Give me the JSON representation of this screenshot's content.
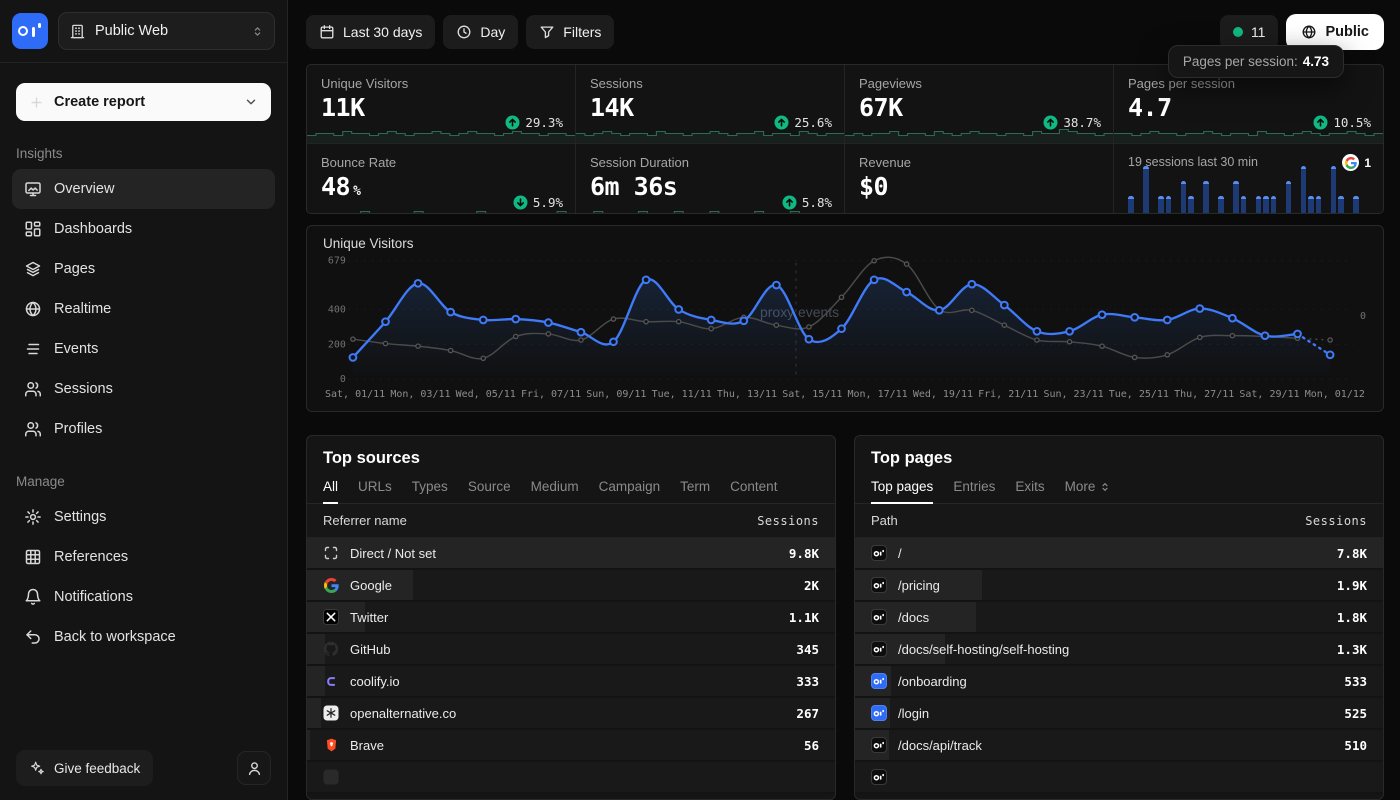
{
  "app": {
    "workspace": "Public Web"
  },
  "sidebar": {
    "create_report": "Create report",
    "sections": [
      {
        "label": "Insights",
        "items": [
          {
            "icon": "overview",
            "label": "Overview",
            "active": true
          },
          {
            "icon": "dashboards",
            "label": "Dashboards"
          },
          {
            "icon": "pages",
            "label": "Pages"
          },
          {
            "icon": "realtime",
            "label": "Realtime"
          },
          {
            "icon": "events",
            "label": "Events"
          },
          {
            "icon": "sessions",
            "label": "Sessions"
          },
          {
            "icon": "profiles",
            "label": "Profiles"
          }
        ]
      },
      {
        "label": "Manage",
        "items": [
          {
            "icon": "settings",
            "label": "Settings"
          },
          {
            "icon": "references",
            "label": "References"
          },
          {
            "icon": "notifications",
            "label": "Notifications"
          },
          {
            "icon": "back",
            "label": "Back to workspace"
          }
        ]
      }
    ],
    "feedback": "Give feedback"
  },
  "toolbar": {
    "date_range": "Last 30 days",
    "interval": "Day",
    "filters": "Filters",
    "live_count": "11",
    "public_label": "Public"
  },
  "tooltip": {
    "text": "Pages per session:",
    "value": "4.73"
  },
  "metrics": [
    {
      "label": "Unique Visitors",
      "value": "11K",
      "change": "29.3%",
      "dir": "up",
      "spark": [
        3,
        4,
        4,
        3,
        5,
        4,
        4,
        3,
        4,
        5,
        4,
        3,
        4,
        4,
        5,
        4,
        3,
        4,
        5,
        4,
        4,
        3,
        4,
        5,
        4,
        4,
        3,
        4,
        4,
        3
      ]
    },
    {
      "label": "Sessions",
      "value": "14K",
      "change": "25.6%",
      "dir": "up",
      "spark": [
        4,
        3,
        4,
        5,
        4,
        3,
        4,
        4,
        3,
        5,
        4,
        4,
        3,
        4,
        4,
        5,
        4,
        3,
        4,
        4,
        5,
        3,
        4,
        4,
        3,
        5,
        4,
        3,
        4,
        4
      ]
    },
    {
      "label": "Pageviews",
      "value": "67K",
      "change": "38.7%",
      "dir": "up",
      "spark": [
        3,
        4,
        3,
        4,
        4,
        5,
        3,
        4,
        4,
        3,
        5,
        4,
        3,
        4,
        5,
        4,
        4,
        3,
        4,
        4,
        3,
        5,
        4,
        4,
        6,
        5,
        4,
        4,
        3,
        4
      ]
    },
    {
      "label": "Pages per session",
      "value": "4.7",
      "change": "10.5%",
      "dir": "up",
      "spark": [
        4,
        4,
        3,
        4,
        5,
        4,
        4,
        3,
        4,
        4,
        5,
        4,
        3,
        4,
        4,
        3,
        5,
        4,
        4,
        3,
        4,
        5,
        4,
        3,
        4,
        4,
        5,
        4,
        3,
        4
      ]
    },
    {
      "label": "Bounce Rate",
      "value": "48",
      "suffix": "%",
      "change": "5.9%",
      "dir": "down",
      "spark": [
        4,
        3,
        4,
        4,
        3,
        4,
        5,
        4,
        4,
        3,
        4,
        4,
        5,
        4,
        3,
        4,
        4,
        3,
        4,
        5,
        4,
        4,
        3,
        4,
        4,
        3,
        4,
        4,
        5,
        4
      ]
    },
    {
      "label": "Session Duration",
      "value": "6m 36s",
      "change": "5.8%",
      "dir": "up",
      "spark": [
        3,
        4,
        5,
        4,
        3,
        4,
        4,
        5,
        4,
        3,
        4,
        5,
        4,
        4,
        3,
        5,
        4,
        4,
        3,
        4,
        5,
        4,
        4,
        3,
        5,
        4,
        3,
        4,
        4,
        3
      ]
    },
    {
      "label": "Revenue",
      "value": "$0",
      "spark_flat": true
    }
  ],
  "live_card": {
    "source_icon": "google-icon",
    "source_count": "1"
  },
  "chart_data": [
    {
      "type": "line",
      "title": "Unique Visitors",
      "x_tick_labels": [
        "Sat, 01/11",
        "Mon, 03/11",
        "Wed, 05/11",
        "Fri, 07/11",
        "Sun, 09/11",
        "Tue, 11/11",
        "Thu, 13/11",
        "Sat, 15/11",
        "Mon, 17/11",
        "Wed, 19/11",
        "Fri, 21/11",
        "Sun, 23/11",
        "Tue, 25/11",
        "Thu, 27/11",
        "Sat, 29/11",
        "Mon, 01/12"
      ],
      "n_points": 31,
      "yticks": [
        0,
        200,
        400,
        679
      ],
      "ylim": [
        0,
        679
      ],
      "series": [
        {
          "name": "Unique Visitors (current)",
          "color": "#3f7bf8",
          "values": [
            125,
            330,
            550,
            385,
            340,
            345,
            325,
            270,
            215,
            570,
            400,
            340,
            335,
            540,
            230,
            290,
            570,
            500,
            395,
            545,
            425,
            275,
            275,
            370,
            355,
            340,
            405,
            350,
            250,
            260,
            140
          ]
        },
        {
          "name": "Previous period",
          "color": "#4a4a4a",
          "values": [
            230,
            205,
            190,
            165,
            120,
            245,
            260,
            225,
            345,
            330,
            330,
            290,
            355,
            310,
            300,
            470,
            679,
            660,
            400,
            395,
            310,
            225,
            215,
            190,
            125,
            140,
            240,
            250,
            245,
            235,
            225
          ]
        }
      ],
      "watermark": "proxy events",
      "right_axis_label": "0",
      "divider_index": 13.6,
      "grid": "dashed-horizontal",
      "legend_position": "none"
    },
    {
      "type": "bar",
      "title": "19 sessions last 30 min",
      "values": [
        1,
        0,
        3,
        0,
        1,
        1,
        0,
        2,
        1,
        0,
        2,
        0,
        1,
        0,
        2,
        1,
        0,
        1,
        1,
        1,
        0,
        2,
        0,
        3,
        1,
        1,
        0,
        3,
        1,
        0,
        1
      ],
      "ylim": [
        0,
        3
      ]
    }
  ],
  "top_sources": {
    "title": "Top sources",
    "tabs": [
      {
        "label": "All",
        "active": true
      },
      {
        "label": "URLs"
      },
      {
        "label": "Types"
      },
      {
        "label": "Source"
      },
      {
        "label": "Medium"
      },
      {
        "label": "Campaign"
      },
      {
        "label": "Term"
      },
      {
        "label": "Content"
      }
    ],
    "columns": [
      "Referrer name",
      "Sessions"
    ],
    "rows": [
      {
        "icon": "direct",
        "name": "Direct / Not set",
        "value": "9.8K",
        "pct": 100
      },
      {
        "icon": "google",
        "name": "Google",
        "value": "2K",
        "pct": 20
      },
      {
        "icon": "twitter",
        "name": "Twitter",
        "value": "1.1K",
        "pct": 11
      },
      {
        "icon": "github",
        "name": "GitHub",
        "value": "345",
        "pct": 3.5
      },
      {
        "icon": "coolify",
        "name": "coolify.io",
        "value": "333",
        "pct": 3.4
      },
      {
        "icon": "openalternative",
        "name": "openalternative.co",
        "value": "267",
        "pct": 2.7
      },
      {
        "icon": "brave",
        "name": "Brave",
        "value": "56",
        "pct": 0.6
      }
    ]
  },
  "top_pages": {
    "title": "Top pages",
    "tabs": [
      {
        "label": "Top pages",
        "active": true
      },
      {
        "label": "Entries"
      },
      {
        "label": "Exits"
      },
      {
        "label": "More",
        "chevron": true
      }
    ],
    "columns": [
      "Path",
      "Sessions"
    ],
    "rows": [
      {
        "icon": "op-dark",
        "name": "/",
        "value": "7.8K",
        "pct": 100
      },
      {
        "icon": "op-dark",
        "name": "/pricing",
        "value": "1.9K",
        "pct": 24
      },
      {
        "icon": "op-dark",
        "name": "/docs",
        "value": "1.8K",
        "pct": 23
      },
      {
        "icon": "op-dark",
        "name": "/docs/self-hosting/self-hosting",
        "value": "1.3K",
        "pct": 17
      },
      {
        "icon": "op-blue",
        "name": "/onboarding",
        "value": "533",
        "pct": 6.8
      },
      {
        "icon": "op-blue",
        "name": "/login",
        "value": "525",
        "pct": 6.7
      },
      {
        "icon": "op-dark",
        "name": "/docs/api/track",
        "value": "510",
        "pct": 6.5
      }
    ]
  }
}
